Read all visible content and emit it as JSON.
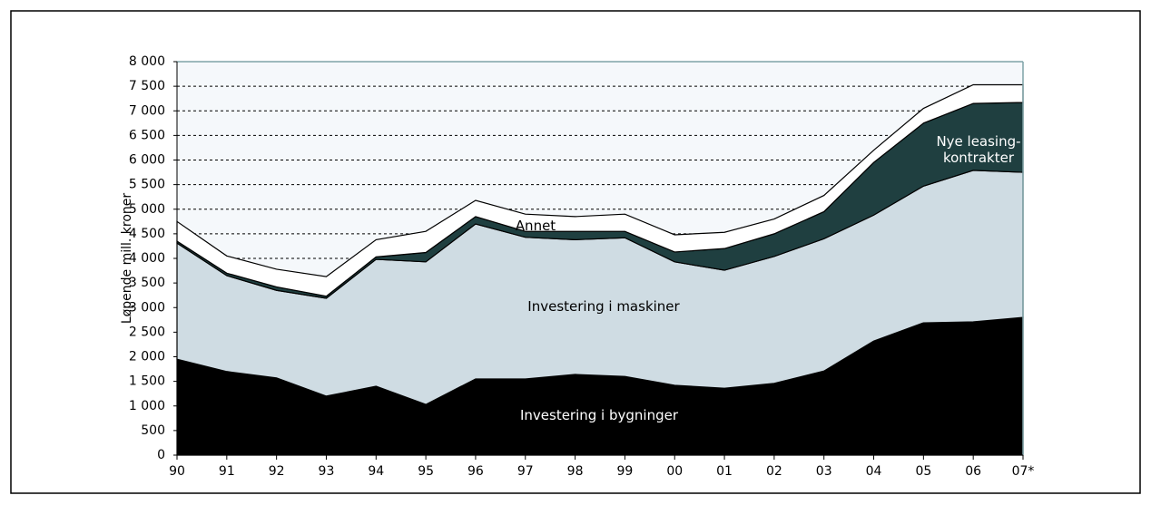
{
  "chart_data": {
    "type": "stacked_area",
    "y_label": "Løpende mill. kroner",
    "categories": [
      "90",
      "91",
      "92",
      "93",
      "94",
      "95",
      "96",
      "97",
      "98",
      "99",
      "00",
      "01",
      "02",
      "03",
      "04",
      "05",
      "06",
      "07*"
    ],
    "series": [
      {
        "name": "Investering i bygninger",
        "color": "#000000",
        "values": [
          1950,
          1700,
          1570,
          1200,
          1400,
          1030,
          1550,
          1550,
          1640,
          1600,
          1420,
          1360,
          1460,
          1710,
          2320,
          2690,
          2710,
          2800
        ]
      },
      {
        "name": "Investering i maskiner",
        "color": "#cfdce3",
        "values": [
          2360,
          1950,
          1780,
          1990,
          2580,
          2900,
          3150,
          2880,
          2740,
          2820,
          2510,
          2400,
          2580,
          2690,
          2560,
          2780,
          3080,
          2950
        ]
      },
      {
        "name": "Nye leasing-kontrakter",
        "color": "#1f3f40",
        "values": [
          40,
          50,
          70,
          40,
          50,
          190,
          150,
          120,
          170,
          130,
          200,
          440,
          460,
          550,
          1070,
          1280,
          1360,
          1420
        ]
      },
      {
        "name": "Annet",
        "color": "#ffffff",
        "values": [
          400,
          350,
          360,
          400,
          350,
          430,
          330,
          350,
          300,
          350,
          350,
          330,
          300,
          330,
          250,
          300,
          380,
          360
        ]
      }
    ],
    "ylim": [
      0,
      8000
    ],
    "yticks": [
      0,
      500,
      {
        "value": 1000,
        "label": "1 000"
      },
      {
        "value": 1500,
        "label": "1 500"
      },
      {
        "value": 2000,
        "label": "2 000"
      },
      {
        "value": 2500,
        "label": "2 500"
      },
      {
        "value": 3000,
        "label": "3 000"
      },
      {
        "value": 3500,
        "label": "3 500"
      },
      {
        "value": 4000,
        "label": "4 000"
      },
      {
        "value": 4500,
        "label": "4 500"
      },
      {
        "value": 5000,
        "label": "5 000"
      },
      {
        "value": 5500,
        "label": "5 500"
      },
      {
        "value": 6000,
        "label": "6 000"
      },
      {
        "value": 6500,
        "label": "6 500"
      },
      {
        "value": 7000,
        "label": "7 000"
      },
      {
        "value": 7500,
        "label": "7 500"
      },
      {
        "value": 8000,
        "label": "8 000"
      }
    ],
    "grid": true
  }
}
